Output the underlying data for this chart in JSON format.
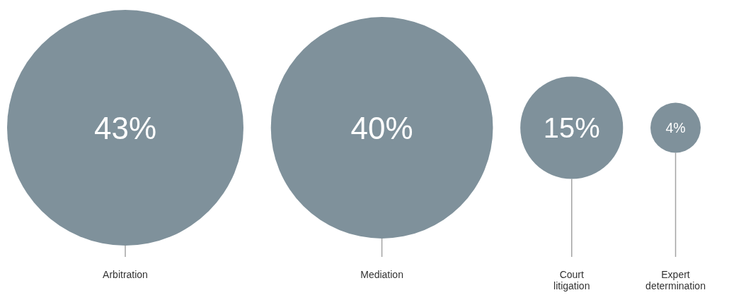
{
  "chart_data": {
    "type": "other",
    "categories": [
      "Arbitration",
      "Mediation",
      "Court litigation",
      "Expert determination"
    ],
    "values": [
      43,
      40,
      15,
      4
    ],
    "value_labels": [
      "43%",
      "40%",
      "15%",
      "4%"
    ],
    "color": "#7f919b"
  }
}
